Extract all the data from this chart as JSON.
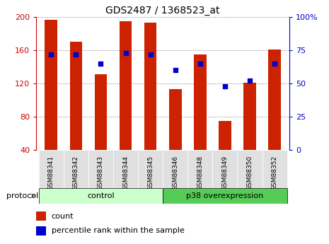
{
  "title": "GDS2487 / 1368523_at",
  "categories": [
    "GSM88341",
    "GSM88342",
    "GSM88343",
    "GSM88344",
    "GSM88345",
    "GSM88346",
    "GSM88348",
    "GSM88349",
    "GSM88350",
    "GSM88352"
  ],
  "count_values": [
    197,
    170,
    131,
    195,
    193,
    113,
    155,
    75,
    121,
    161
  ],
  "percentile_values": [
    72,
    72,
    65,
    73,
    72,
    60,
    65,
    48,
    52,
    65
  ],
  "ylim_left": [
    40,
    200
  ],
  "ylim_right": [
    0,
    100
  ],
  "yticks_left": [
    40,
    80,
    120,
    160,
    200
  ],
  "yticks_right": [
    0,
    25,
    50,
    75,
    100
  ],
  "bar_color": "#cc2200",
  "dot_color": "#0000cc",
  "control_group": [
    0,
    1,
    2,
    3,
    4
  ],
  "overexpression_group": [
    5,
    6,
    7,
    8,
    9
  ],
  "control_label": "control",
  "overexpression_label": "p38 overexpression",
  "protocol_label": "protocol",
  "legend_count_label": "count",
  "legend_percentile_label": "percentile rank within the sample",
  "control_color": "#ccffcc",
  "overexpression_color": "#55cc55",
  "tick_bg_color": "#cccccc",
  "left_axis_color": "#cc0000",
  "right_axis_color": "#0000cc",
  "bar_width": 0.5
}
